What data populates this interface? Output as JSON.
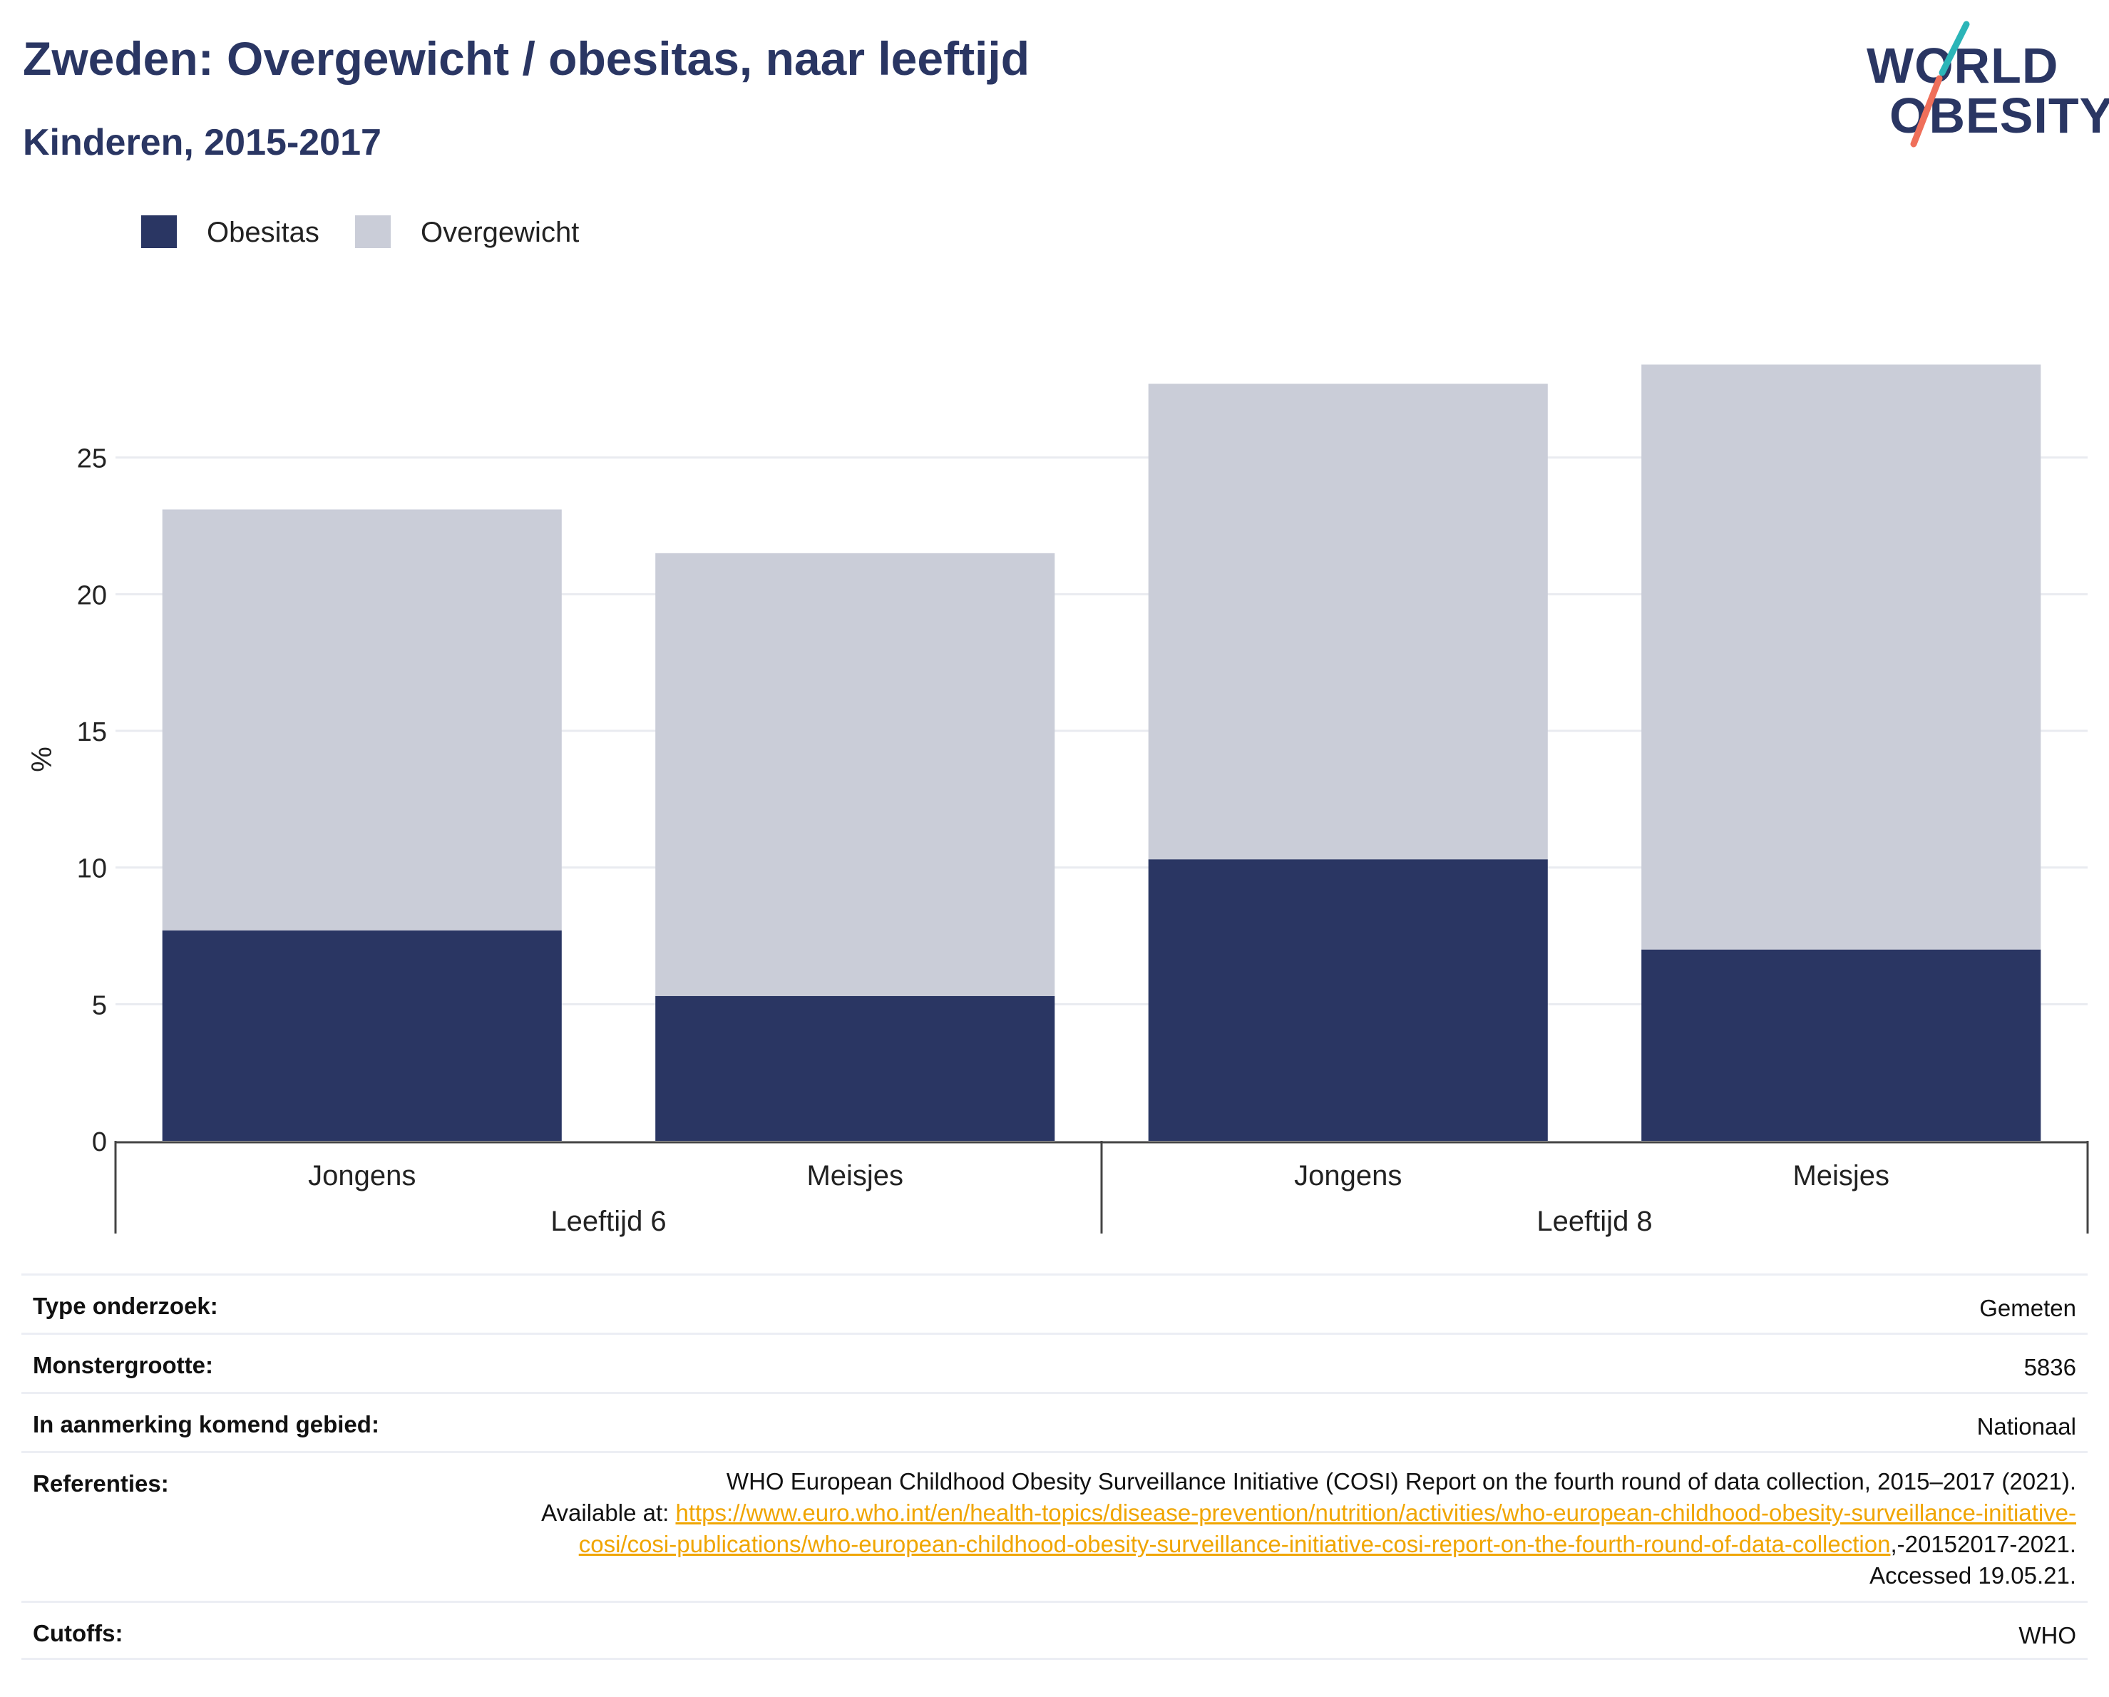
{
  "header": {
    "title": "Zweden: Overgewicht / obesitas, naar leeftijd",
    "subtitle": "Kinderen, 2015-2017"
  },
  "logo": {
    "line1": "WORLD",
    "line2": "OBESITY",
    "colors": {
      "teal": "#2bb5b8",
      "coral": "#ef6f5a",
      "navy": "#2a3663"
    }
  },
  "legend": [
    {
      "label": "Obesitas",
      "color": "#2a3663"
    },
    {
      "label": "Overgewicht",
      "color": "#cacdd8"
    }
  ],
  "chart_data": {
    "type": "bar",
    "stacked": true,
    "groups": [
      {
        "label": "Leeftijd 6",
        "categories": [
          "Jongens",
          "Meisjes"
        ]
      },
      {
        "label": "Leeftijd 8",
        "categories": [
          "Jongens",
          "Meisjes"
        ]
      }
    ],
    "categories": [
      "Jongens",
      "Meisjes",
      "Jongens",
      "Meisjes"
    ],
    "series": [
      {
        "name": "Obesitas",
        "color": "#2a3663",
        "values": [
          7.7,
          5.3,
          10.3,
          7.0
        ]
      },
      {
        "name": "Overgewicht",
        "color": "#cacdd8",
        "values": [
          15.4,
          16.2,
          17.4,
          21.4
        ]
      }
    ],
    "ylabel": "%",
    "ylim": [
      0,
      30
    ],
    "yticks": [
      0,
      5,
      10,
      15,
      20,
      25
    ],
    "grid": true,
    "legend_position": "top-left"
  },
  "meta": {
    "type_label": "Type onderzoek:",
    "type_value": "Gemeten",
    "sample_label": "Monstergrootte:",
    "sample_value": "5836",
    "area_label": "In aanmerking komend gebied:",
    "area_value": "Nationaal",
    "ref_label": "Referenties:",
    "ref_text_1": "WHO European Childhood Obesity Surveillance Initiative (COSI) Report on the fourth round of data collection, 2015–2017 (2021).",
    "ref_text_2": "Available at: ",
    "ref_url": "https://www.euro.who.int/en/health-topics/disease-prevention/nutrition/activities/who-european-childhood-obesity-surveillance-initiative-cosi/cosi-publications/who-european-childhood-obesity-surveillance-initiative-cosi-report-on-the-fourth-round-of-data-collection",
    "ref_text_3": ",-20152017-2021. Accessed 19.05.21.",
    "cutoffs_label": "Cutoffs:",
    "cutoffs_value": "WHO"
  }
}
